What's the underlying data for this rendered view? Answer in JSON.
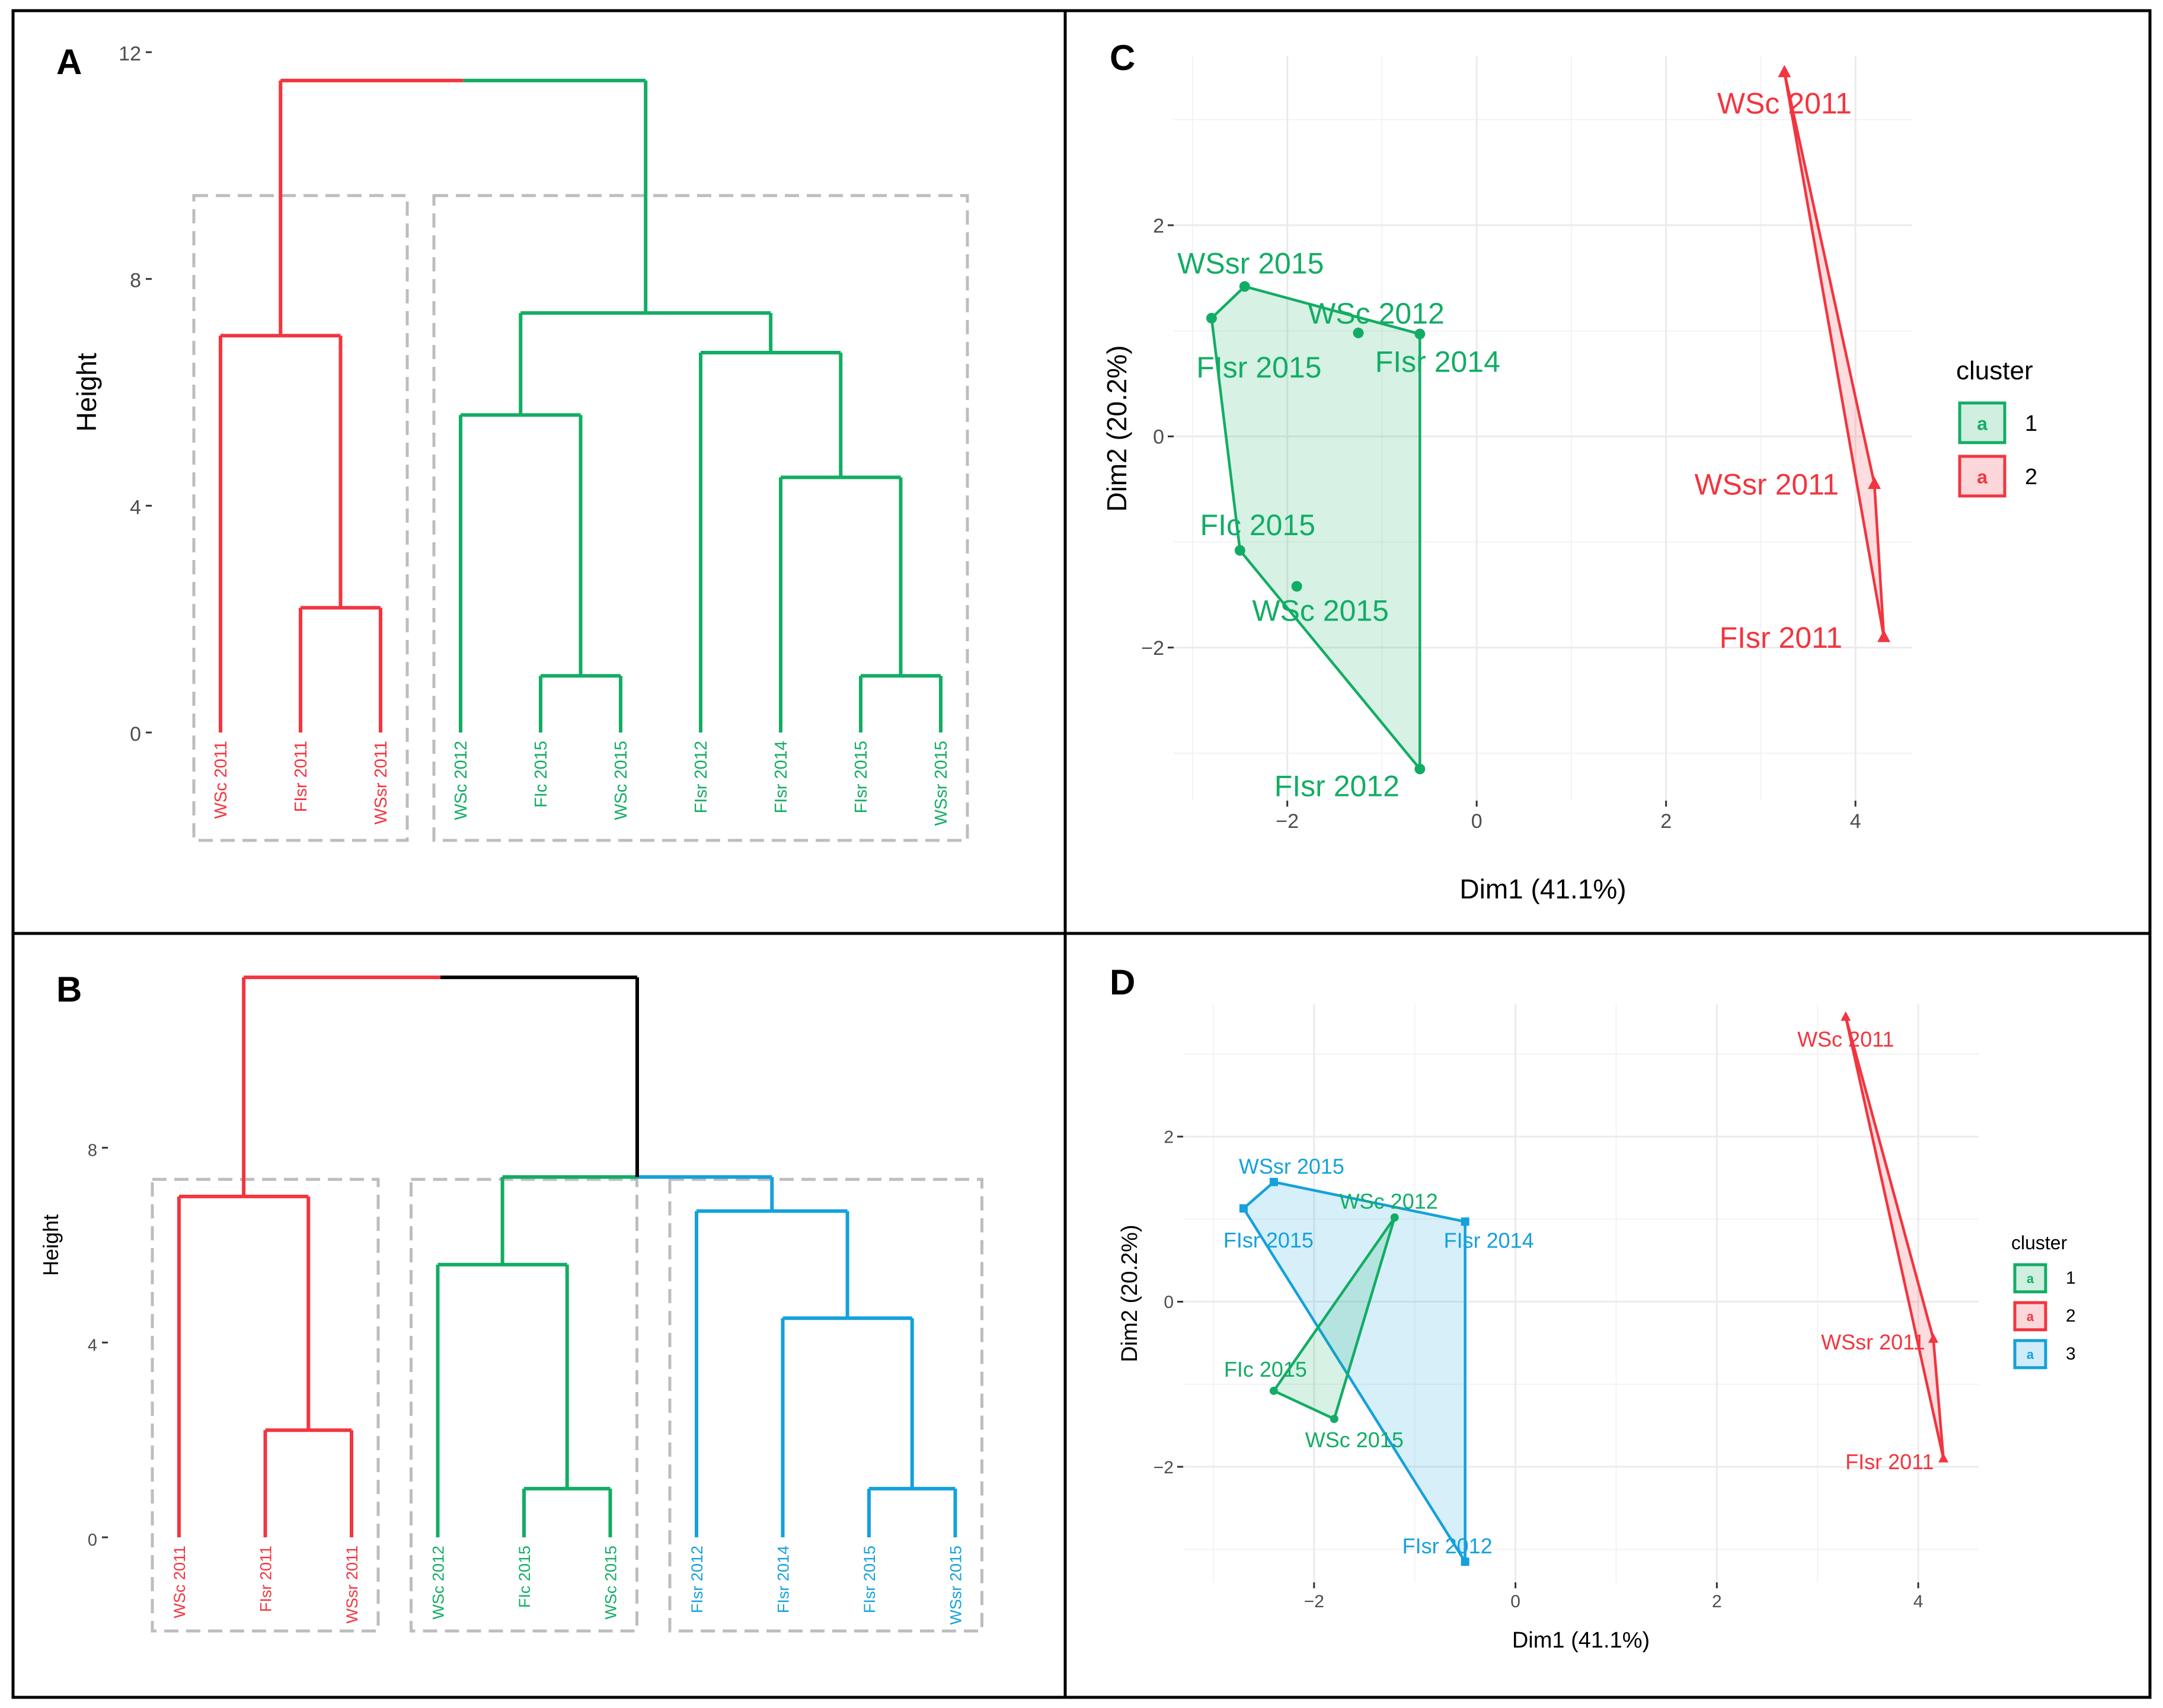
{
  "panel_letters": [
    "A",
    "B",
    "C",
    "D"
  ],
  "colors": {
    "red": "#f2353f",
    "green": "#12ad64",
    "blue": "#14a1dc",
    "black": "#000000",
    "grid": "#ebebeb",
    "dash": "#bdbdbd"
  },
  "chart_data": [
    {
      "panel": "A",
      "type": "dendrogram",
      "ylabel": "Height",
      "ylim": [
        0,
        12
      ],
      "yticks": [
        0,
        4,
        8,
        12
      ],
      "leaves": [
        {
          "label": "WSc 2011",
          "cluster": "red"
        },
        {
          "label": "FIsr 2011",
          "cluster": "red"
        },
        {
          "label": "WSsr 2011",
          "cluster": "red"
        },
        {
          "label": "WSc 2012",
          "cluster": "green"
        },
        {
          "label": "FIc 2015",
          "cluster": "green"
        },
        {
          "label": "WSc 2015",
          "cluster": "green"
        },
        {
          "label": "FIsr 2012",
          "cluster": "green"
        },
        {
          "label": "FIsr 2014",
          "cluster": "green"
        },
        {
          "label": "FIsr 2015",
          "cluster": "green"
        },
        {
          "label": "WSsr 2015",
          "cluster": "green"
        }
      ],
      "merges": [
        {
          "left": "L1",
          "right": "L2",
          "height": 2.2,
          "color": "red"
        },
        {
          "left": "L0",
          "right": "M0",
          "height": 7.0,
          "color": "red"
        },
        {
          "left": "L4",
          "right": "L5",
          "height": 1.0,
          "color": "green"
        },
        {
          "left": "L3",
          "right": "M2",
          "height": 5.6,
          "color": "green"
        },
        {
          "left": "L8",
          "right": "L9",
          "height": 1.0,
          "color": "green"
        },
        {
          "left": "L7",
          "right": "M4",
          "height": 4.5,
          "color": "green"
        },
        {
          "left": "L6",
          "right": "M5",
          "height": 6.7,
          "color": "green"
        },
        {
          "left": "M3",
          "right": "M6",
          "height": 7.4,
          "color": "green"
        },
        {
          "left": "M1",
          "right": "M7",
          "height": 11.5,
          "color": [
            "red",
            "green"
          ]
        }
      ],
      "boxes": [
        [
          0,
          2
        ],
        [
          3,
          9
        ]
      ]
    },
    {
      "panel": "B",
      "type": "dendrogram",
      "ylabel": "Height",
      "ylim": [
        0,
        12
      ],
      "yticks": [
        0,
        4,
        8
      ],
      "leaves": [
        {
          "label": "WSc 2011",
          "cluster": "red"
        },
        {
          "label": "FIsr 2011",
          "cluster": "red"
        },
        {
          "label": "WSsr 2011",
          "cluster": "red"
        },
        {
          "label": "WSc 2012",
          "cluster": "green"
        },
        {
          "label": "FIc 2015",
          "cluster": "green"
        },
        {
          "label": "WSc 2015",
          "cluster": "green"
        },
        {
          "label": "FIsr 2012",
          "cluster": "blue"
        },
        {
          "label": "FIsr 2014",
          "cluster": "blue"
        },
        {
          "label": "FIsr 2015",
          "cluster": "blue"
        },
        {
          "label": "WSsr 2015",
          "cluster": "blue"
        }
      ],
      "merges": [
        {
          "left": "L1",
          "right": "L2",
          "height": 2.2,
          "color": "red"
        },
        {
          "left": "L0",
          "right": "M0",
          "height": 7.0,
          "color": "red"
        },
        {
          "left": "L4",
          "right": "L5",
          "height": 1.0,
          "color": "green"
        },
        {
          "left": "L3",
          "right": "M2",
          "height": 5.6,
          "color": "green"
        },
        {
          "left": "L8",
          "right": "L9",
          "height": 1.0,
          "color": "blue"
        },
        {
          "left": "L7",
          "right": "M4",
          "height": 4.5,
          "color": "blue"
        },
        {
          "left": "L6",
          "right": "M5",
          "height": 6.7,
          "color": "blue"
        },
        {
          "left": "M3",
          "right": "M6",
          "height": 7.4,
          "color": [
            "green",
            "blue"
          ]
        },
        {
          "left": "M1",
          "right": "M7",
          "height": 11.5,
          "color": [
            "red",
            "black"
          ]
        }
      ],
      "boxes": [
        [
          0,
          2
        ],
        [
          3,
          5
        ],
        [
          6,
          9
        ]
      ]
    },
    {
      "panel": "C",
      "type": "scatter",
      "xlabel": "Dim1 (41.1%)",
      "ylabel": "Dim2 (20.2%)",
      "xlim": [
        -3.2,
        4.6
      ],
      "ylim": [
        -3.45,
        3.6
      ],
      "xticks": [
        -2,
        0,
        2,
        4
      ],
      "yticks": [
        -2,
        0,
        2
      ],
      "xtick_labels": [
        "−2",
        "0",
        "2",
        "4"
      ],
      "ytick_labels": [
        "−2",
        "0",
        "2"
      ],
      "legend": {
        "title": "cluster",
        "position": "right",
        "entries": [
          {
            "label": "1",
            "color": "green"
          },
          {
            "label": "2",
            "color": "red"
          }
        ]
      },
      "points": [
        {
          "label": "WSsr 2015",
          "x": -2.45,
          "y": 1.42,
          "cluster": "green"
        },
        {
          "label": "FIsr 2015",
          "x": -2.8,
          "y": 1.12,
          "cluster": "green"
        },
        {
          "label": "WSc 2012",
          "x": -1.25,
          "y": 0.98,
          "cluster": "green"
        },
        {
          "label": "FIsr 2014",
          "x": -0.6,
          "y": 0.97,
          "cluster": "green"
        },
        {
          "label": "FIc 2015",
          "x": -2.5,
          "y": -1.08,
          "cluster": "green"
        },
        {
          "label": "WSc 2015",
          "x": -1.9,
          "y": -1.42,
          "cluster": "green"
        },
        {
          "label": "FIsr 2012",
          "x": -0.6,
          "y": -3.15,
          "cluster": "green"
        },
        {
          "label": "WSc 2011",
          "x": 3.25,
          "y": 3.45,
          "cluster": "red"
        },
        {
          "label": "WSsr 2011",
          "x": 4.2,
          "y": -0.45,
          "cluster": "red"
        },
        {
          "label": "FIsr 2011",
          "x": 4.3,
          "y": -1.9,
          "cluster": "red"
        }
      ],
      "hulls": [
        {
          "cluster": "green",
          "points": [
            "FIsr 2015",
            "WSsr 2015",
            "FIsr 2014",
            "FIsr 2012",
            "FIc 2015"
          ]
        },
        {
          "cluster": "red",
          "points": [
            "WSc 2011",
            "WSsr 2011",
            "FIsr 2011"
          ]
        }
      ]
    },
    {
      "panel": "D",
      "type": "scatter",
      "xlabel": "Dim1 (41.1%)",
      "ylabel": "Dim2 (20.2%)",
      "xlim": [
        -3.3,
        4.6
      ],
      "ylim": [
        -3.4,
        3.6
      ],
      "xticks": [
        -2,
        0,
        2,
        4
      ],
      "yticks": [
        -2,
        0,
        2
      ],
      "xtick_labels": [
        "−2",
        "0",
        "2",
        "4"
      ],
      "ytick_labels": [
        "−2",
        "0",
        "2"
      ],
      "legend": {
        "title": "cluster",
        "position": "right",
        "entries": [
          {
            "label": "1",
            "color": "green"
          },
          {
            "label": "2",
            "color": "red"
          },
          {
            "label": "3",
            "color": "blue"
          }
        ]
      },
      "points": [
        {
          "label": "WSsr 2015",
          "x": -2.4,
          "y": 1.45,
          "cluster": "blue"
        },
        {
          "label": "FIsr 2015",
          "x": -2.7,
          "y": 1.13,
          "cluster": "blue"
        },
        {
          "label": "WSc 2012",
          "x": -1.2,
          "y": 1.02,
          "cluster": "green"
        },
        {
          "label": "FIsr 2014",
          "x": -0.5,
          "y": 0.97,
          "cluster": "blue"
        },
        {
          "label": "FIc 2015",
          "x": -2.4,
          "y": -1.08,
          "cluster": "green"
        },
        {
          "label": "WSc 2015",
          "x": -1.8,
          "y": -1.42,
          "cluster": "green"
        },
        {
          "label": "FIsr 2012",
          "x": -0.5,
          "y": -3.15,
          "cluster": "blue"
        },
        {
          "label": "WSc 2011",
          "x": 3.28,
          "y": 3.45,
          "cluster": "red"
        },
        {
          "label": "WSsr 2011",
          "x": 4.15,
          "y": -0.45,
          "cluster": "red"
        },
        {
          "label": "FIsr 2011",
          "x": 4.25,
          "y": -1.9,
          "cluster": "red"
        }
      ],
      "hulls": [
        {
          "cluster": "blue",
          "points": [
            "FIsr 2015",
            "WSsr 2015",
            "FIsr 2014",
            "FIsr 2012"
          ]
        },
        {
          "cluster": "green",
          "points": [
            "FIc 2015",
            "WSc 2012",
            "WSc 2015"
          ]
        },
        {
          "cluster": "red",
          "points": [
            "WSc 2011",
            "WSsr 2011",
            "FIsr 2011"
          ]
        }
      ]
    }
  ]
}
